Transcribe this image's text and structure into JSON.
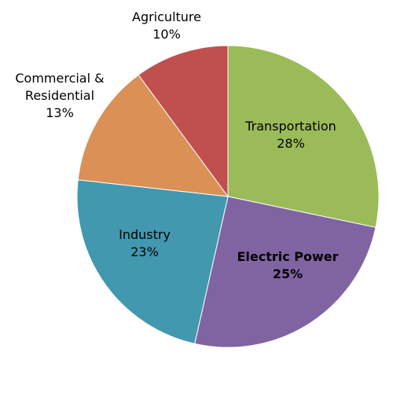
{
  "chart_data": {
    "type": "pie",
    "title": "",
    "slices": [
      {
        "name": "Transportation",
        "value": 28,
        "label": "28%",
        "color": "#9BBB59",
        "bold": false
      },
      {
        "name": "Electric Power",
        "value": 25,
        "label": "25%",
        "color": "#8064A2",
        "bold": true
      },
      {
        "name": "Industry",
        "value": 23,
        "label": "23%",
        "color": "#4198AF",
        "bold": false
      },
      {
        "name": "Commercial & Residential",
        "name_lines": [
          "Commercial &",
          "Residential"
        ],
        "value": 13,
        "label": "13%",
        "color": "#DB9056",
        "bold": false
      },
      {
        "name": "Agriculture",
        "value": 10,
        "label": "10%",
        "color": "#C0504D",
        "bold": false
      }
    ],
    "legend": "none",
    "start": "top, clockwise"
  }
}
